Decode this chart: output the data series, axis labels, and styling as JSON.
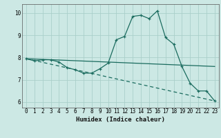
{
  "title": "",
  "xlabel": "Humidex (Indice chaleur)",
  "bg_color": "#cce8e4",
  "line_color": "#1a6b5e",
  "grid_color": "#aacfca",
  "xlim": [
    -0.5,
    23.5
  ],
  "ylim": [
    5.75,
    10.4
  ],
  "xticks": [
    0,
    1,
    2,
    3,
    4,
    5,
    6,
    7,
    8,
    9,
    10,
    11,
    12,
    13,
    14,
    15,
    16,
    17,
    18,
    19,
    20,
    21,
    22,
    23
  ],
  "yticks": [
    6,
    7,
    8,
    9,
    10
  ],
  "line1_x": [
    0,
    1,
    2,
    3,
    4,
    5,
    6,
    7,
    8,
    9,
    10,
    11,
    12,
    13,
    14,
    15,
    16,
    17,
    18,
    19,
    20,
    21,
    22,
    23
  ],
  "line1_y": [
    7.95,
    7.85,
    7.9,
    7.9,
    7.8,
    7.55,
    7.45,
    7.3,
    7.3,
    7.5,
    7.75,
    8.8,
    8.95,
    9.85,
    9.9,
    9.75,
    10.1,
    8.9,
    8.6,
    7.6,
    6.85,
    6.5,
    6.5,
    6.05
  ],
  "line2_x": [
    0,
    23
  ],
  "line2_y": [
    7.95,
    7.6
  ],
  "line3_x": [
    0,
    23
  ],
  "line3_y": [
    7.95,
    6.05
  ],
  "marker_size": 3.5,
  "linewidth": 0.9
}
